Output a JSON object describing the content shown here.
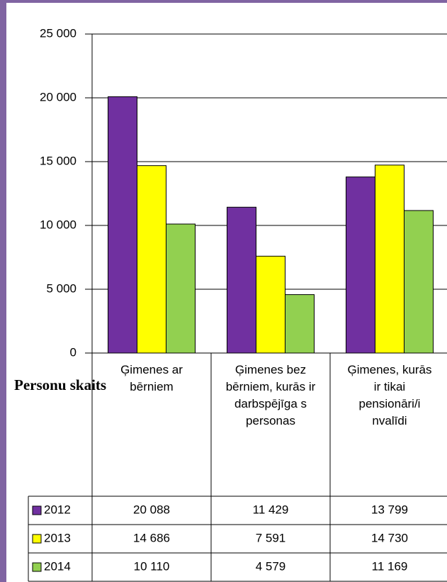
{
  "chart_data": {
    "type": "bar",
    "y_label": "Personu skaits",
    "categories": [
      "Ģimenes ar bērniem",
      "Ģimenes bez bērniem, kurās ir darbspējīga s personas",
      "Ģimenes, kurās ir tikai pensionāri/i nvalīdi"
    ],
    "series": [
      {
        "name": "2012",
        "color": "#7030a0",
        "values": [
          20088,
          11429,
          13799
        ],
        "value_labels": [
          "20 088",
          "11 429",
          "13 799"
        ]
      },
      {
        "name": "2013",
        "color": "#ffff00",
        "values": [
          14686,
          7591,
          14730
        ],
        "value_labels": [
          "14 686",
          "7 591",
          "14 730"
        ]
      },
      {
        "name": "2014",
        "color": "#92d050",
        "values": [
          10110,
          4579,
          11169
        ],
        "value_labels": [
          "10 110",
          "4 579",
          "11 169"
        ]
      }
    ],
    "ylim": [
      0,
      25000
    ],
    "yticks": [
      0,
      {
        "value": 5000,
        "label": "5 000"
      },
      {
        "value": 10000,
        "label": "10 000"
      },
      {
        "value": 15000,
        "label": "15 000"
      },
      {
        "value": 20000,
        "label": "20 000"
      },
      {
        "value": 25000,
        "label": "25 000"
      }
    ],
    "grid": true,
    "legend": "table"
  }
}
